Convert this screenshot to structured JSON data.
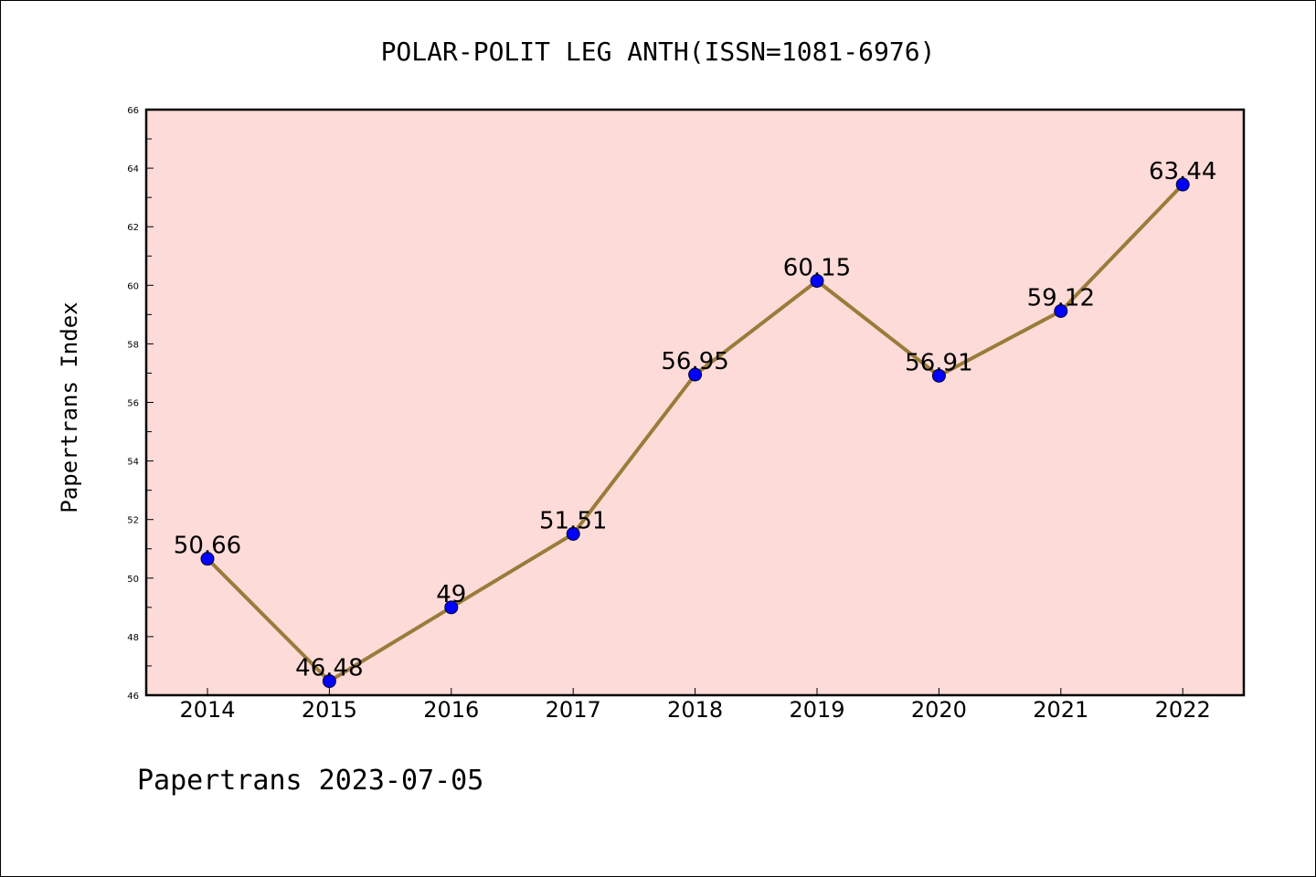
{
  "footer_text": "Papertrans 2023-07-05",
  "chart_data": {
    "type": "line",
    "title": "POLAR-POLIT LEG ANTH(ISSN=1081-6976)",
    "xlabel": "",
    "ylabel": "Papertrans Index",
    "categories": [
      "2014",
      "2015",
      "2016",
      "2017",
      "2018",
      "2019",
      "2020",
      "2021",
      "2022"
    ],
    "values": [
      50.66,
      46.48,
      49,
      51.51,
      56.95,
      60.15,
      56.91,
      59.12,
      63.44
    ],
    "data_labels": [
      "50.66",
      "46.48",
      "49",
      "51.51",
      "56.95",
      "60.15",
      "56.91",
      "59.12",
      "63.44"
    ],
    "ylim": [
      46,
      66
    ],
    "yticks": [
      46,
      48,
      50,
      52,
      54,
      56,
      58,
      60,
      62,
      64,
      66
    ],
    "grid": false,
    "colors": {
      "line": "#9a7b3a",
      "marker": "#0000ff",
      "plot_background": "#fddbd8"
    }
  }
}
